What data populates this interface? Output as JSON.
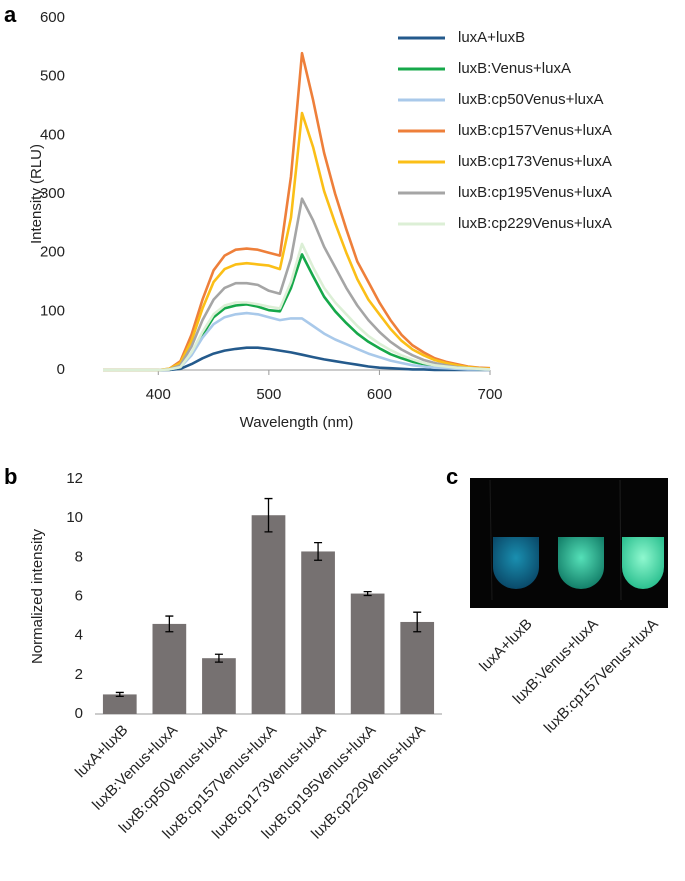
{
  "panels": [
    "a",
    "b",
    "c"
  ],
  "photo": {
    "labels": [
      "luxA+luxB",
      "luxB:Venus+luxA",
      "luxB:cp157Venus+luxA"
    ]
  },
  "chart_data": [
    {
      "type": "line",
      "x_label": "Wavelength (nm)",
      "y_label": "Intensity (RLU)",
      "xlim": [
        350,
        700
      ],
      "xticks": [
        400,
        500,
        600,
        700
      ],
      "ylim": [
        0,
        600
      ],
      "yticks": [
        0,
        100,
        200,
        300,
        400,
        500,
        600
      ],
      "legend": "upper right",
      "x": [
        350,
        360,
        370,
        380,
        390,
        400,
        410,
        420,
        430,
        440,
        450,
        460,
        470,
        480,
        490,
        500,
        510,
        520,
        530,
        540,
        550,
        560,
        570,
        580,
        590,
        600,
        610,
        620,
        630,
        640,
        650,
        660,
        670,
        680,
        690,
        700
      ],
      "series": [
        {
          "name": "luxA+luxB",
          "color": "#245a8c",
          "values": [
            0,
            0,
            0,
            0,
            0,
            0,
            0,
            2,
            10,
            20,
            28,
            33,
            36,
            38,
            38,
            36,
            33,
            30,
            26,
            22,
            18,
            15,
            12,
            9,
            6,
            4,
            3,
            2,
            1,
            1,
            0,
            0,
            0,
            0,
            0,
            0
          ]
        },
        {
          "name": "luxB:Venus+luxA",
          "color": "#16a84a",
          "values": [
            0,
            0,
            0,
            0,
            0,
            0,
            1,
            5,
            28,
            60,
            90,
            105,
            110,
            112,
            108,
            102,
            100,
            140,
            197,
            160,
            125,
            100,
            80,
            62,
            48,
            37,
            27,
            20,
            14,
            10,
            7,
            5,
            3,
            2,
            1,
            1
          ]
        },
        {
          "name": "luxB:cp50Venus+luxA",
          "color": "#a9c9ea",
          "values": [
            0,
            0,
            0,
            0,
            0,
            0,
            1,
            5,
            25,
            55,
            78,
            90,
            95,
            97,
            95,
            90,
            85,
            88,
            88,
            75,
            62,
            52,
            44,
            36,
            28,
            22,
            16,
            12,
            8,
            6,
            4,
            3,
            2,
            1,
            1,
            0
          ]
        },
        {
          "name": "luxB:cp157Venus+luxA",
          "color": "#ee7f3a",
          "values": [
            0,
            0,
            0,
            0,
            0,
            0,
            2,
            15,
            60,
            120,
            170,
            195,
            205,
            207,
            205,
            200,
            195,
            330,
            540,
            460,
            370,
            300,
            240,
            185,
            150,
            115,
            85,
            60,
            42,
            30,
            20,
            14,
            10,
            6,
            4,
            3
          ]
        },
        {
          "name": "luxB:cp173Venus+luxA",
          "color": "#fbbf17",
          "values": [
            0,
            0,
            0,
            0,
            0,
            0,
            2,
            12,
            50,
            105,
            150,
            172,
            180,
            182,
            180,
            178,
            172,
            260,
            438,
            380,
            305,
            250,
            200,
            155,
            120,
            95,
            70,
            50,
            35,
            25,
            17,
            12,
            8,
            5,
            3,
            2
          ]
        },
        {
          "name": "luxB:cp195Venus+luxA",
          "color": "#a5a5a5",
          "values": [
            0,
            0,
            0,
            0,
            0,
            0,
            1,
            8,
            40,
            85,
            120,
            140,
            148,
            148,
            145,
            135,
            130,
            190,
            292,
            255,
            210,
            175,
            140,
            110,
            85,
            65,
            48,
            35,
            25,
            17,
            12,
            8,
            5,
            3,
            2,
            1
          ]
        },
        {
          "name": "luxB:cp229Venus+luxA",
          "color": "#dcefd6",
          "values": [
            0,
            0,
            0,
            0,
            0,
            0,
            1,
            5,
            30,
            65,
            95,
            110,
            115,
            115,
            112,
            108,
            105,
            150,
            215,
            175,
            140,
            115,
            95,
            75,
            58,
            45,
            34,
            25,
            18,
            12,
            8,
            6,
            4,
            3,
            2,
            1
          ]
        }
      ]
    },
    {
      "type": "bar",
      "y_label": "Normalized intensity",
      "color": "#767171",
      "categories": [
        "luxA+luxB",
        "luxB:Venus+luxA",
        "luxB:cp50Venus+luxA",
        "luxB:cp157Venus+luxA",
        "luxB:cp173Venus+luxA",
        "luxB:cp195Venus+luxA",
        "luxB:cp229Venus+luxA"
      ],
      "values": [
        1.0,
        4.6,
        2.85,
        10.15,
        8.3,
        6.15,
        4.7
      ],
      "errors": [
        0.1,
        0.4,
        0.2,
        0.85,
        0.45,
        0.1,
        0.5
      ],
      "ylim": [
        0,
        12
      ],
      "yticks": [
        0,
        2,
        4,
        6,
        8,
        10,
        12
      ]
    }
  ]
}
